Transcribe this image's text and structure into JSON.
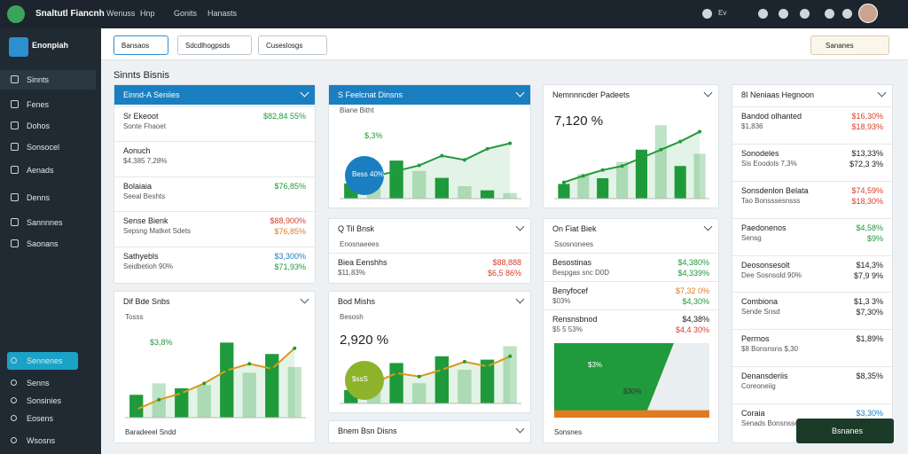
{
  "topbar": {
    "brand": "Snaltutl Fiancnh",
    "menu": [
      "Wenuss",
      "Hnp",
      "Gonits",
      "Hanasts"
    ],
    "flag": "Ev"
  },
  "sidebar": {
    "brand": "Enonpiah",
    "items": [
      "Sinnts",
      "Fenes",
      "Dohos",
      "Sonsocel",
      "Aenads",
      "Denns",
      "Sannnnes",
      "Saonans"
    ],
    "bottom": [
      "Sennenes",
      "Senns",
      "Sonsinies",
      "Eosens",
      "Wsosns"
    ]
  },
  "toolbar": {
    "buttons": [
      "Bansaos",
      "Sdcdlhogpsds",
      "Cuseslosgs"
    ],
    "search": "Sananes"
  },
  "page_title": "Sinnts Bisnis",
  "colors": {
    "green": "#1f9a3c",
    "red": "#d8402a",
    "orange": "#e07b22",
    "blue": "#1a7fc1",
    "dark": "#222"
  },
  "cards": [
    {
      "title": "Einnd-A Seniies",
      "header": "blue",
      "rows": [
        {
          "label": "Sr Ekeoot",
          "sub": "Sonte Fhaoet",
          "value": "$82,84 55%",
          "color": "green"
        },
        {
          "label": "Aonuch",
          "sub": "$4,385 7,28%",
          "value": "",
          "color": "orange"
        },
        {
          "label": "Bolaiaia",
          "sub": "Seeal Beshts",
          "value": "$76,85%",
          "color": "green"
        },
        {
          "label": "Sense Bienk",
          "sub": "Sepsng Matket Sdets",
          "value": "$88,900%",
          "value2": "$76,85%",
          "color": "red",
          "color2": "orange"
        },
        {
          "label": "Sathyebls",
          "sub": "Seidbetioh 90%",
          "value": "$3,300%",
          "value2": "$71,93%",
          "color": "blue",
          "color2": "green"
        }
      ]
    },
    {
      "title": "Dif Bde Snbs",
      "sub": "Tosss",
      "chart": {
        "max": 100,
        "bars": [
          28,
          42,
          36,
          40,
          92,
          55,
          78,
          62
        ],
        "line": [
          10,
          22,
          30,
          42,
          58,
          66,
          60,
          85
        ],
        "badge": "$3,8%"
      },
      "footer": "Baradeeel Sndd"
    },
    {
      "title": "S Feelcnat Dinsns",
      "header": "blue",
      "sub": "Biane Bitht",
      "chart": {
        "max": 100,
        "bars": [
          22,
          45,
          55,
          40,
          30,
          18,
          12,
          8
        ],
        "line": [
          20,
          32,
          40,
          48,
          62,
          56,
          72,
          80
        ],
        "badge": "$,3%",
        "circle": "Bess 40%"
      }
    },
    {
      "title": "Q Til Bnsk",
      "sub": "Enosnaeees",
      "rows": [
        {
          "label": "Biea Eenshhs",
          "sub": "$11,83%",
          "value": "$88,888",
          "value2": "$6,5 86%",
          "color": "red",
          "color2": "red"
        }
      ]
    },
    {
      "title": "Bod Mishs",
      "sub": "Besosh",
      "chart": {
        "max": 100,
        "bars": [
          20,
          35,
          60,
          30,
          70,
          50,
          65,
          85
        ],
        "line": [
          15,
          30,
          45,
          40,
          50,
          62,
          55,
          70
        ],
        "big": "2,920 %",
        "circle": "$ssS"
      }
    },
    {
      "title": "Bnem Bsn Disns"
    },
    {
      "title": "Nemnnncder Padeets",
      "chart": {
        "max": 100,
        "bars": [
          18,
          30,
          25,
          45,
          60,
          90,
          40,
          55
        ],
        "line": [
          20,
          28,
          35,
          40,
          50,
          60,
          70,
          82
        ],
        "big": "7,120 %"
      }
    },
    {
      "title": "On Fiat Biek",
      "sub": "Ssosnonees",
      "rows": [
        {
          "label": "Besostinas",
          "sub": "Bespgas snc D0D",
          "value": "$4,380%",
          "value2": "$4,339%",
          "color": "green",
          "color2": "green"
        },
        {
          "label": "Benyfocef",
          "sub": "$03%",
          "value": "$7,32 0%",
          "value2": "$4,30%",
          "color": "orange",
          "color2": "green"
        },
        {
          "label": "Rensnsbnod",
          "sub": "$5 5 53%",
          "value": "$4,38%",
          "value2": "$4,4 30%",
          "color": "dark",
          "color2": "red"
        }
      ],
      "pie": {
        "values": [
          62,
          38
        ],
        "labels": [
          "$3%",
          "$30%"
        ]
      },
      "footer": "Sonsnes"
    },
    {
      "title": "8I Neniaas Hegnoon",
      "rows": [
        {
          "label": "Bandod olhanted",
          "sub": "$1,836",
          "value": "$16,30%",
          "value2": "$18,93%",
          "color": "red",
          "color2": "red"
        },
        {
          "label": "Sonodeles",
          "sub": "Sis Eoodols 7,3%",
          "value": "$13,33%",
          "value2": "$72,3 3%",
          "color": "dark",
          "color2": "dark"
        },
        {
          "label": "Sonsdenlon Belata",
          "sub": "Tao Bonsssesnsss",
          "value": "$74,59%",
          "value2": "$18,30%",
          "color": "red",
          "color2": "red"
        },
        {
          "label": "Paedonenos",
          "sub": "Sensg",
          "value": "$4,58%",
          "value2": "$9%",
          "color": "green",
          "color2": "green"
        },
        {
          "label": "Deosonsesolt",
          "sub": "Dee Sosnsold 90%",
          "value": "$14,3%",
          "value2": "$7,9 9%",
          "color": "dark",
          "color2": "dark"
        },
        {
          "label": "Combiona",
          "sub": "Sende Snsd",
          "value": "$1,3 3%",
          "value2": "$7,30%",
          "color": "dark",
          "color2": "dark"
        },
        {
          "label": "Perrnos",
          "sub": "$8 Bonsnsns $,30",
          "value": "$1,89%",
          "color": "dark"
        },
        {
          "label": "Denansderiis",
          "sub": "Coreoneiig",
          "value": "$8,35%",
          "color": "dark"
        },
        {
          "label": "Coraia",
          "sub": "Senads Bonsnssen",
          "value": "$3,30%",
          "color": "blue"
        }
      ]
    }
  ],
  "action": "Bsnanes"
}
